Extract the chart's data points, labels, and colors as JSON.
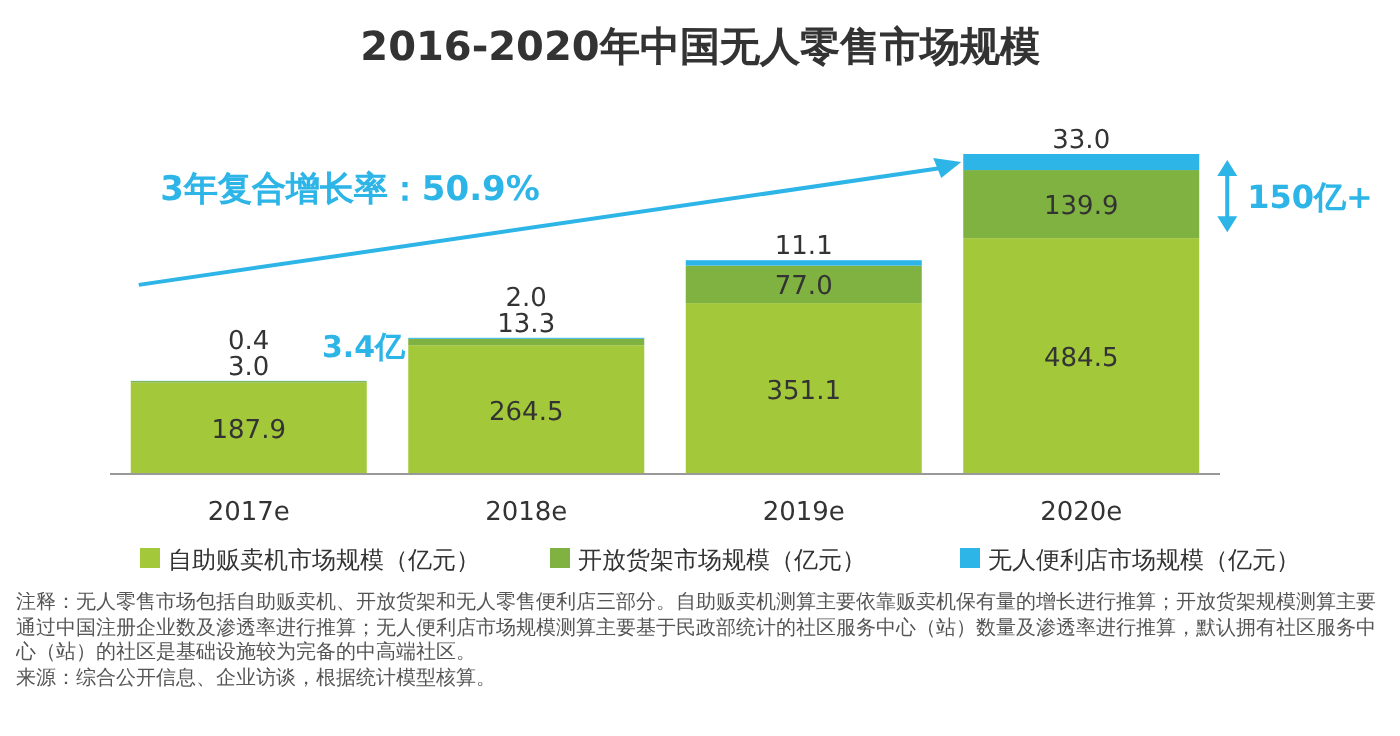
{
  "chart_data": {
    "type": "bar",
    "stacked": true,
    "title": "2016-2020年中国无人零售市场规模",
    "categories": [
      "2017e",
      "2018e",
      "2019e",
      "2020e"
    ],
    "series": [
      {
        "name": "自助贩卖机市场规模（亿元）",
        "color": "#a3c93a",
        "values": [
          187.9,
          264.5,
          351.1,
          484.5
        ],
        "value_labels": [
          "187.9",
          "264.5",
          "351.1",
          "484.5"
        ]
      },
      {
        "name": "开放货架市场规模（亿元）",
        "color": "#7fb241",
        "values": [
          3.0,
          13.3,
          77.0,
          139.9
        ],
        "value_labels": [
          "3.0",
          "13.3",
          "77.0",
          "139.9"
        ]
      },
      {
        "name": "无人便利店市场规模（亿元）",
        "color": "#2cb5e6",
        "values": [
          0.4,
          2.0,
          11.1,
          33.0
        ],
        "value_labels": [
          "0.4",
          "2.0",
          "11.1",
          "33.0"
        ]
      }
    ],
    "legend": "bottom",
    "annotations": [
      "3年复合增长率：50.9%",
      "3.4亿",
      "150亿+",
      "注释：无人零售市场包括自助贩卖机、开放货架和无人零售便利店三部分。自助贩卖机测算主要依靠贩卖机保有量的增长进行推算；开放货架规模测算主要通过中国注册企业数及渗透率进行推算；无人便利店市场规模测算主要基于民政部统计的社区服务中心（站）数量及渗透率进行推算，默认拥有社区服务中心（站）的社区是基础设施较为完备的中高端社区。",
      "来源：综合公开信息、企业访谈，根据统计模型核算。"
    ]
  }
}
